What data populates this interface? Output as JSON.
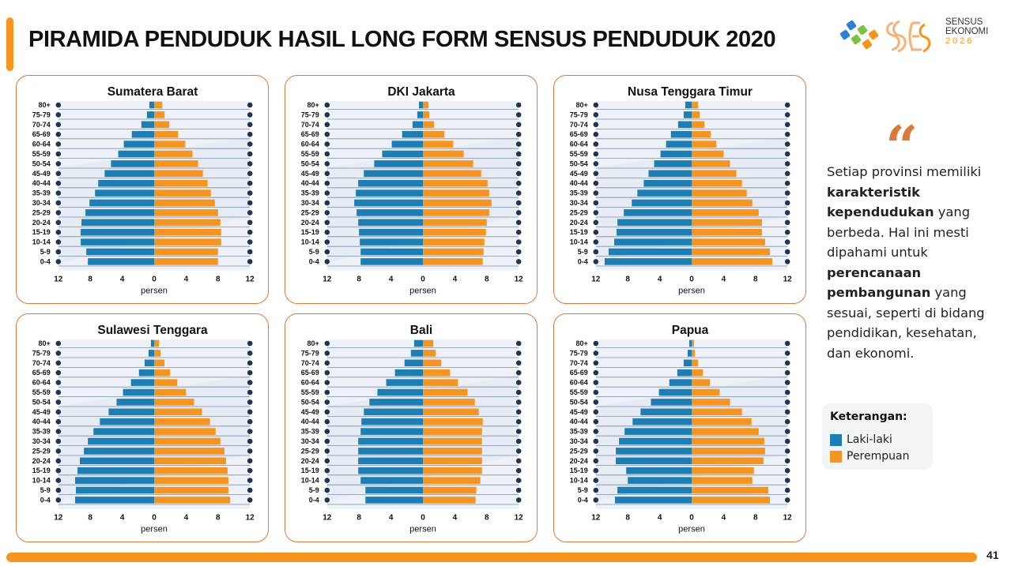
{
  "header": {
    "title": "PIRAMIDA PENDUDUK HASIL LONG FORM SENSUS PENDUDUK 2020"
  },
  "logo": {
    "line1": "SENSUS",
    "line2": "EKONOMI",
    "line3": "2026",
    "colors": [
      "#2b7fd4",
      "#7cc142",
      "#f7941d"
    ]
  },
  "colors": {
    "male": "#1b7fb5",
    "female": "#f7941d",
    "card_border": "#d9793a",
    "accent": "#f7941d"
  },
  "quote": {
    "mark": "“",
    "parts": [
      {
        "text": "Setiap provinsi memiliki ",
        "bold": false
      },
      {
        "text": "karakteristik kependudukan",
        "bold": true
      },
      {
        "text": " yang berbeda. Hal ini mesti dipahami untuk ",
        "bold": false
      },
      {
        "text": "perencanaan pembangunan",
        "bold": true
      },
      {
        "text": " yang sesuai, seperti di bidang pendidikan, kesehatan, dan ekonomi.",
        "bold": false
      }
    ]
  },
  "legend": {
    "title": "Keterangan:",
    "male_label": "Laki-laki",
    "female_label": "Perempuan"
  },
  "footer": {
    "page_number": "41"
  },
  "chart_data": [
    {
      "type": "bar",
      "orientation": "population-pyramid",
      "title": "Sumatera Barat",
      "categories": [
        "80+",
        "75-79",
        "70-74",
        "65-69",
        "60-64",
        "55-59",
        "50-54",
        "45-49",
        "40-44",
        "35-39",
        "30-34",
        "25-29",
        "20-24",
        "15-19",
        "10-14",
        "5-9",
        "0-4"
      ],
      "series": [
        {
          "name": "Laki-laki",
          "values": [
            0.6,
            0.9,
            1.6,
            2.8,
            3.8,
            4.5,
            5.4,
            6.2,
            7.0,
            7.4,
            8.1,
            8.6,
            9.1,
            9.2,
            9.2,
            8.5,
            8.3
          ]
        },
        {
          "name": "Perempuan",
          "values": [
            1.0,
            1.3,
            1.9,
            3.0,
            3.9,
            4.8,
            5.5,
            6.1,
            6.7,
            7.1,
            7.6,
            8.0,
            8.3,
            8.4,
            8.4,
            8.0,
            8.0
          ]
        }
      ],
      "xlabel": "persen",
      "xticks": [
        "12",
        "8",
        "4",
        "0",
        "4",
        "8",
        "12"
      ],
      "xlim": [
        -12,
        12
      ]
    },
    {
      "type": "bar",
      "orientation": "population-pyramid",
      "title": "DKI Jakarta",
      "categories": [
        "80+",
        "75-79",
        "70-74",
        "65-69",
        "60-64",
        "55-59",
        "50-54",
        "45-49",
        "40-44",
        "35-39",
        "30-34",
        "25-29",
        "20-24",
        "15-19",
        "10-14",
        "5-9",
        "0-4"
      ],
      "series": [
        {
          "name": "Laki-laki",
          "values": [
            0.5,
            0.7,
            1.3,
            2.6,
            3.9,
            5.1,
            6.1,
            7.4,
            8.1,
            8.4,
            8.6,
            8.3,
            8.1,
            8.0,
            7.9,
            7.8,
            7.8
          ]
        },
        {
          "name": "Perempuan",
          "values": [
            0.7,
            0.8,
            1.4,
            2.7,
            3.8,
            5.1,
            6.3,
            7.3,
            8.1,
            8.3,
            8.6,
            8.3,
            8.0,
            7.9,
            7.7,
            7.6,
            7.5
          ]
        }
      ],
      "xlabel": "persen",
      "xticks": [
        "12",
        "8",
        "4",
        "0",
        "4",
        "8",
        "12"
      ],
      "xlim": [
        -12,
        12
      ]
    },
    {
      "type": "bar",
      "orientation": "population-pyramid",
      "title": "Nusa Tenggara Timur",
      "categories": [
        "80+",
        "75-79",
        "70-74",
        "65-69",
        "60-64",
        "55-59",
        "50-54",
        "45-49",
        "40-44",
        "35-39",
        "30-34",
        "25-29",
        "20-24",
        "15-19",
        "10-14",
        "5-9",
        "0-4"
      ],
      "series": [
        {
          "name": "Laki-laki",
          "values": [
            0.8,
            1.0,
            1.7,
            2.6,
            3.2,
            3.9,
            4.7,
            5.4,
            6.0,
            6.8,
            7.5,
            8.5,
            9.3,
            9.4,
            9.7,
            10.4,
            10.9
          ]
        },
        {
          "name": "Perempuan",
          "values": [
            0.8,
            1.0,
            1.6,
            2.4,
            3.1,
            4.0,
            4.8,
            5.6,
            6.3,
            6.9,
            7.6,
            8.4,
            8.8,
            8.8,
            9.2,
            9.8,
            10.1
          ]
        }
      ],
      "xlabel": "persen",
      "xticks": [
        "12",
        "8",
        "4",
        "0",
        "4",
        "8",
        "12"
      ],
      "xlim": [
        -12,
        12
      ]
    },
    {
      "type": "bar",
      "orientation": "population-pyramid",
      "title": "Sulawesi Tenggara",
      "categories": [
        "80+",
        "75-79",
        "70-74",
        "65-69",
        "60-64",
        "55-59",
        "50-54",
        "45-49",
        "40-44",
        "35-39",
        "30-34",
        "25-29",
        "20-24",
        "15-19",
        "10-14",
        "5-9",
        "0-4"
      ],
      "series": [
        {
          "name": "Laki-laki",
          "values": [
            0.4,
            0.7,
            1.2,
            1.9,
            2.9,
            3.9,
            4.7,
            5.7,
            6.8,
            7.6,
            8.3,
            8.8,
            9.3,
            9.6,
            9.9,
            9.8,
            9.9
          ]
        },
        {
          "name": "Perempuan",
          "values": [
            0.6,
            0.8,
            1.3,
            2.0,
            2.9,
            4.0,
            5.0,
            6.0,
            7.0,
            7.7,
            8.3,
            8.8,
            9.0,
            9.2,
            9.3,
            9.3,
            9.5
          ]
        }
      ],
      "xlabel": "persen",
      "xticks": [
        "12",
        "8",
        "4",
        "0",
        "4",
        "8",
        "12"
      ],
      "xlim": [
        -12,
        12
      ]
    },
    {
      "type": "bar",
      "orientation": "population-pyramid",
      "title": "Bali",
      "categories": [
        "80+",
        "75-79",
        "70-74",
        "65-69",
        "60-64",
        "55-59",
        "50-54",
        "45-49",
        "40-44",
        "35-39",
        "30-34",
        "25-29",
        "20-24",
        "15-19",
        "10-14",
        "5-9",
        "0-4"
      ],
      "series": [
        {
          "name": "Laki-laki",
          "values": [
            1.1,
            1.5,
            2.3,
            3.5,
            4.6,
            5.7,
            6.7,
            7.4,
            7.7,
            7.8,
            8.1,
            8.1,
            8.1,
            8.1,
            7.8,
            7.2,
            7.2
          ]
        },
        {
          "name": "Perempuan",
          "values": [
            1.3,
            1.6,
            2.3,
            3.4,
            4.4,
            5.6,
            6.5,
            7.0,
            7.5,
            7.4,
            7.4,
            7.4,
            7.4,
            7.4,
            7.2,
            6.7,
            6.6
          ]
        }
      ],
      "xlabel": "persen",
      "xticks": [
        "12",
        "8",
        "4",
        "0",
        "4",
        "8",
        "12"
      ],
      "xlim": [
        -12,
        12
      ]
    },
    {
      "type": "bar",
      "orientation": "population-pyramid",
      "title": "Papua",
      "categories": [
        "80+",
        "75-79",
        "70-74",
        "65-69",
        "60-64",
        "55-59",
        "50-54",
        "45-49",
        "40-44",
        "35-39",
        "30-34",
        "25-29",
        "20-24",
        "15-19",
        "10-14",
        "5-9",
        "0-4"
      ],
      "series": [
        {
          "name": "Laki-laki",
          "values": [
            0.3,
            0.5,
            1.0,
            1.8,
            2.8,
            4.1,
            5.1,
            6.4,
            7.4,
            8.4,
            9.1,
            9.5,
            9.5,
            8.2,
            8.0,
            9.3,
            9.6
          ]
        },
        {
          "name": "Perempuan",
          "values": [
            0.3,
            0.4,
            0.8,
            1.4,
            2.3,
            3.5,
            4.8,
            6.3,
            7.5,
            8.4,
            9.1,
            9.2,
            9.0,
            7.8,
            7.6,
            9.6,
            9.8
          ]
        }
      ],
      "xlabel": "persen",
      "xticks": [
        "12",
        "8",
        "4",
        "0",
        "4",
        "8",
        "12"
      ],
      "xlim": [
        -12,
        12
      ]
    }
  ]
}
